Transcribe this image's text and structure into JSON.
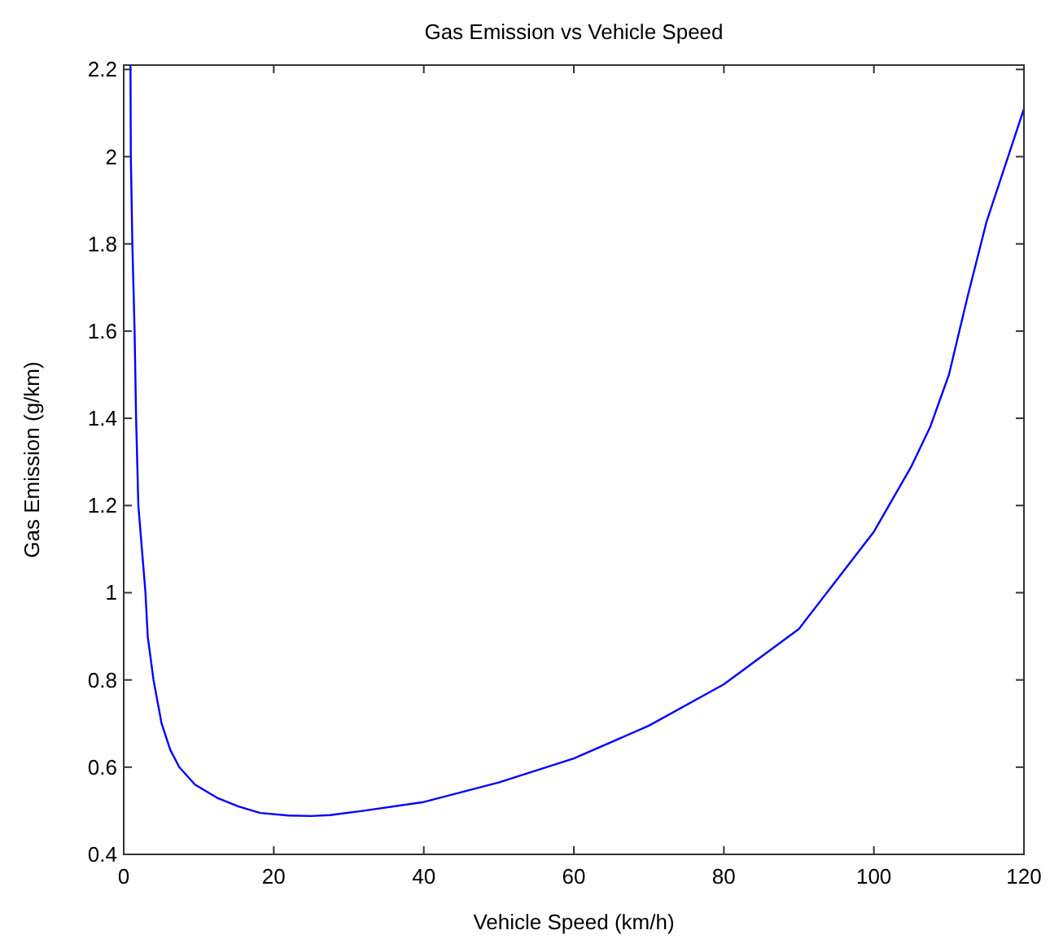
{
  "chart_data": {
    "type": "line",
    "title": "Gas Emission vs Vehicle Speed",
    "xlabel": "Vehicle Speed (km/h)",
    "ylabel": "Gas Emission (g/km)",
    "xlim": [
      0,
      120
    ],
    "ylim": [
      0.4,
      2.21
    ],
    "xticks": [
      0,
      20,
      40,
      60,
      80,
      100,
      120
    ],
    "yticks": [
      0.4,
      0.6,
      0.8,
      1,
      1.2,
      1.4,
      1.6,
      1.8,
      2,
      2.2
    ],
    "grid": false,
    "marker": "none",
    "line_style": "solid",
    "series": [
      {
        "color": "#0000ff",
        "x": [
          0.9,
          0.95,
          1.15,
          1.45,
          1.65,
          1.95,
          2.9,
          3.2,
          3.97,
          5.05,
          6.2,
          7.4,
          9.5,
          12.4,
          15.3,
          18.2,
          22,
          25,
          27.5,
          32,
          40,
          50,
          60,
          70,
          80,
          90,
          100,
          105,
          107.5,
          110,
          112.5,
          115,
          120
        ],
        "values": [
          2.21,
          2,
          1.8,
          1.6,
          1.4,
          1.2,
          1,
          0.9,
          0.8,
          0.7,
          0.64,
          0.6,
          0.56,
          0.53,
          0.51,
          0.495,
          0.489,
          0.488,
          0.49,
          0.5,
          0.52,
          0.565,
          0.62,
          0.695,
          0.79,
          0.917,
          1.14,
          1.29,
          1.38,
          1.5,
          1.68,
          1.85,
          2.11
        ]
      }
    ]
  }
}
